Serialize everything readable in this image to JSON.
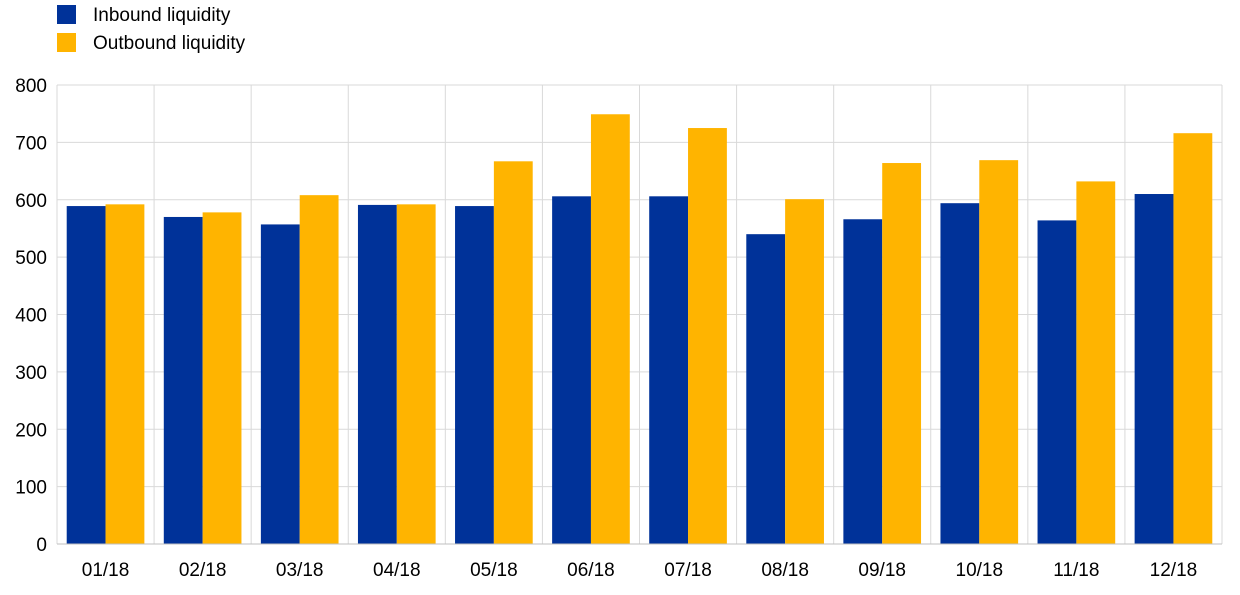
{
  "chart_data": {
    "type": "bar",
    "title": "",
    "xlabel": "",
    "ylabel": "",
    "ylim": [
      0,
      800
    ],
    "yticks": [
      0,
      100,
      200,
      300,
      400,
      500,
      600,
      700,
      800
    ],
    "grid": true,
    "legend_position": "top-left",
    "categories": [
      "01/18",
      "02/18",
      "03/18",
      "04/18",
      "05/18",
      "06/18",
      "07/18",
      "08/18",
      "09/18",
      "10/18",
      "11/18",
      "12/18"
    ],
    "series": [
      {
        "name": "Inbound liquidity",
        "color": "#003299",
        "values": [
          589,
          570,
          557,
          591,
          589,
          606,
          606,
          540,
          566,
          594,
          564,
          610
        ]
      },
      {
        "name": "Outbound liquidity",
        "color": "#FFB400",
        "values": [
          592,
          578,
          608,
          592,
          667,
          749,
          725,
          601,
          664,
          669,
          632,
          716
        ]
      }
    ]
  }
}
